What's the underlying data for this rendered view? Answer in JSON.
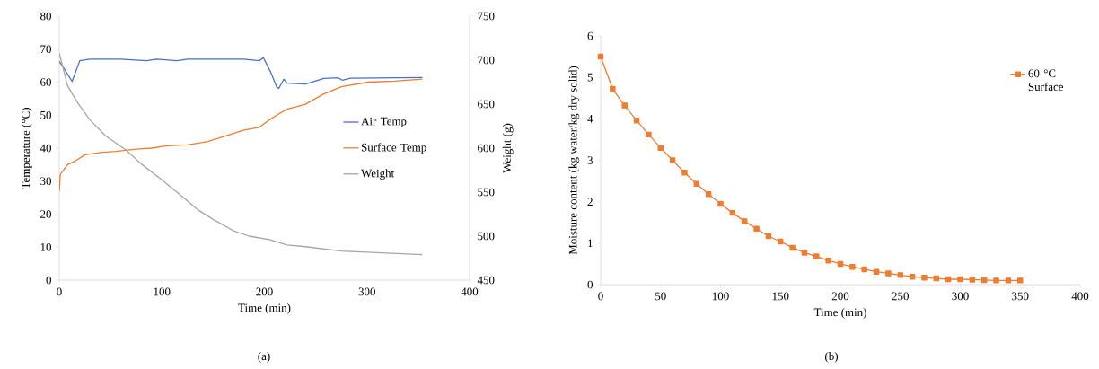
{
  "chart_data": [
    {
      "type": "line",
      "xlabel": "Time (min)",
      "ylabel": "Temperature (°C)",
      "y2label": "Weight (g)",
      "xlim": [
        0,
        400
      ],
      "xticks": [
        0,
        100,
        200,
        300,
        400
      ],
      "ylim": [
        0,
        80
      ],
      "yticks": [
        0,
        10,
        20,
        30,
        40,
        50,
        60,
        70,
        80
      ],
      "y2lim": [
        450,
        750
      ],
      "y2ticks": [
        450,
        500,
        550,
        600,
        650,
        700,
        750
      ],
      "legend": "right",
      "annotations": [
        "(a)"
      ],
      "series": [
        {
          "name": "Air Temp",
          "color": "#4472c4",
          "x": [
            0,
            5,
            12.5,
            20,
            30,
            60,
            85,
            95,
            115,
            125,
            180,
            195,
            199,
            206,
            212,
            214,
            219,
            222,
            240,
            258,
            272,
            276,
            284,
            354
          ],
          "values": [
            66.3,
            64,
            60.2,
            66.5,
            67,
            67,
            66.5,
            67,
            66.5,
            67,
            67,
            66.5,
            67.4,
            63.1,
            58.5,
            58.1,
            60.9,
            59.7,
            59.4,
            61.1,
            61.3,
            60.6,
            61.2,
            61.4
          ]
        },
        {
          "name": "Surface Temp",
          "color": "#ed7d31",
          "x": [
            0,
            1,
            8,
            15,
            25,
            40,
            55,
            75,
            90,
            105,
            125,
            145,
            165,
            180,
            195,
            205,
            212,
            222,
            240,
            257,
            275,
            301,
            327,
            354
          ],
          "values": [
            26.9,
            32,
            35,
            36,
            38,
            38.7,
            39,
            39.7,
            40,
            40.7,
            41,
            42,
            44,
            45.5,
            46.3,
            48.6,
            50,
            51.8,
            53.3,
            56.3,
            58.6,
            60,
            60.3,
            60.9
          ]
        },
        {
          "name": "Weight",
          "color": "#a5a5a5",
          "axis": "y2",
          "x": [
            0,
            4,
            8,
            15,
            20,
            30,
            45,
            65,
            80,
            100,
            120,
            135,
            150,
            170,
            185,
            205,
            222,
            240,
            275,
            354
          ],
          "values": [
            708,
            690,
            671,
            657,
            648,
            632,
            614,
            598,
            582,
            564,
            545,
            530,
            519,
            506,
            500,
            496,
            490,
            488,
            483,
            479
          ]
        }
      ]
    },
    {
      "type": "line",
      "xlabel": "Time (min)",
      "ylabel": "Moisture content (kg water/kg dry solid)",
      "xlim": [
        0,
        400
      ],
      "xticks": [
        0,
        50,
        100,
        150,
        200,
        250,
        300,
        350,
        400
      ],
      "ylim": [
        0,
        6
      ],
      "yticks": [
        0,
        1,
        2,
        3,
        4,
        5,
        6
      ],
      "legend": "top right",
      "marker": "square",
      "annotations": [
        "(b)"
      ],
      "series": [
        {
          "name": "60 °C Surface",
          "color": "#ed7d31",
          "x": [
            0,
            10,
            20,
            30,
            40,
            50,
            60,
            70,
            80,
            90,
            100,
            110,
            120,
            130,
            140,
            150,
            160,
            170,
            180,
            190,
            200,
            210,
            220,
            230,
            240,
            250,
            260,
            270,
            280,
            290,
            300,
            310,
            320,
            330,
            340,
            350
          ],
          "values": [
            5.5,
            4.72,
            4.32,
            3.96,
            3.62,
            3.3,
            3.0,
            2.7,
            2.43,
            2.18,
            1.95,
            1.73,
            1.53,
            1.35,
            1.17,
            1.04,
            0.89,
            0.77,
            0.68,
            0.58,
            0.5,
            0.43,
            0.37,
            0.31,
            0.27,
            0.23,
            0.19,
            0.17,
            0.15,
            0.13,
            0.13,
            0.12,
            0.11,
            0.1,
            0.1,
            0.1
          ]
        }
      ]
    }
  ]
}
